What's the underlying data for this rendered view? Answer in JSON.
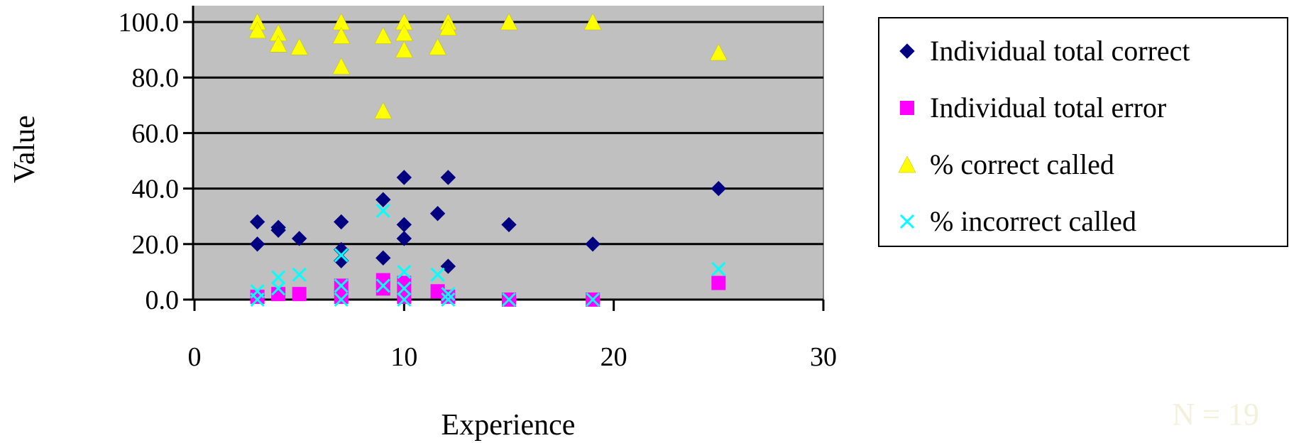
{
  "chart_data": {
    "type": "scatter",
    "xlabel": "Experience",
    "ylabel": "Value",
    "xlim": [
      0,
      30
    ],
    "ylim": [
      0,
      100
    ],
    "xticks": [
      "0",
      "10",
      "20",
      "30"
    ],
    "yticks": [
      "0.0",
      "20.0",
      "40.0",
      "60.0",
      "80.0",
      "100.0"
    ],
    "grid": "horizontal",
    "legend_position": "right",
    "annotation": "N = 19",
    "colors": {
      "plot_bg": "#c0c0c0",
      "gridline": "#000000",
      "annotation": "#f3f0dc"
    },
    "series": [
      {
        "name": "Individual total correct",
        "marker": "diamond",
        "color": "#000080",
        "points": [
          [
            3,
            28
          ],
          [
            3,
            20
          ],
          [
            4,
            26
          ],
          [
            4,
            25
          ],
          [
            5,
            22
          ],
          [
            7,
            28
          ],
          [
            7,
            18
          ],
          [
            7,
            14
          ],
          [
            9,
            36
          ],
          [
            9,
            15
          ],
          [
            10,
            44
          ],
          [
            10,
            27
          ],
          [
            10,
            22
          ],
          [
            11.6,
            31
          ],
          [
            12.1,
            44
          ],
          [
            12.1,
            12
          ],
          [
            15,
            27
          ],
          [
            19,
            20
          ],
          [
            25,
            40
          ]
        ]
      },
      {
        "name": "Individual total error",
        "marker": "square",
        "color": "#ff00ff",
        "points": [
          [
            3,
            1
          ],
          [
            4,
            2
          ],
          [
            5,
            2
          ],
          [
            7,
            5
          ],
          [
            7,
            1
          ],
          [
            9,
            7
          ],
          [
            9,
            4
          ],
          [
            10,
            6
          ],
          [
            10,
            1
          ],
          [
            11.6,
            3
          ],
          [
            12.1,
            1
          ],
          [
            15,
            0
          ],
          [
            19,
            0
          ],
          [
            25,
            6
          ]
        ]
      },
      {
        "name": "% correct called",
        "marker": "triangle",
        "color": "#ffff00",
        "points": [
          [
            3,
            100
          ],
          [
            3,
            97
          ],
          [
            4,
            96
          ],
          [
            4,
            92
          ],
          [
            5,
            91
          ],
          [
            7,
            100
          ],
          [
            7,
            95
          ],
          [
            7,
            84
          ],
          [
            9,
            95
          ],
          [
            9,
            68
          ],
          [
            10,
            100
          ],
          [
            10,
            96
          ],
          [
            10,
            90
          ],
          [
            11.6,
            91
          ],
          [
            12.1,
            100
          ],
          [
            12.1,
            98
          ],
          [
            15,
            100
          ],
          [
            19,
            100
          ],
          [
            25,
            89
          ]
        ]
      },
      {
        "name": "% incorrect called",
        "marker": "x",
        "color": "#00ffff",
        "points": [
          [
            3,
            3
          ],
          [
            3,
            0
          ],
          [
            4,
            8
          ],
          [
            4,
            4
          ],
          [
            5,
            9
          ],
          [
            7,
            16
          ],
          [
            7,
            5
          ],
          [
            7,
            0
          ],
          [
            9,
            32
          ],
          [
            9,
            5
          ],
          [
            10,
            10
          ],
          [
            10,
            4
          ],
          [
            10,
            0
          ],
          [
            11.6,
            9
          ],
          [
            12.1,
            2
          ],
          [
            12.1,
            0
          ],
          [
            15,
            0
          ],
          [
            19,
            0
          ],
          [
            25,
            11
          ]
        ]
      }
    ]
  }
}
